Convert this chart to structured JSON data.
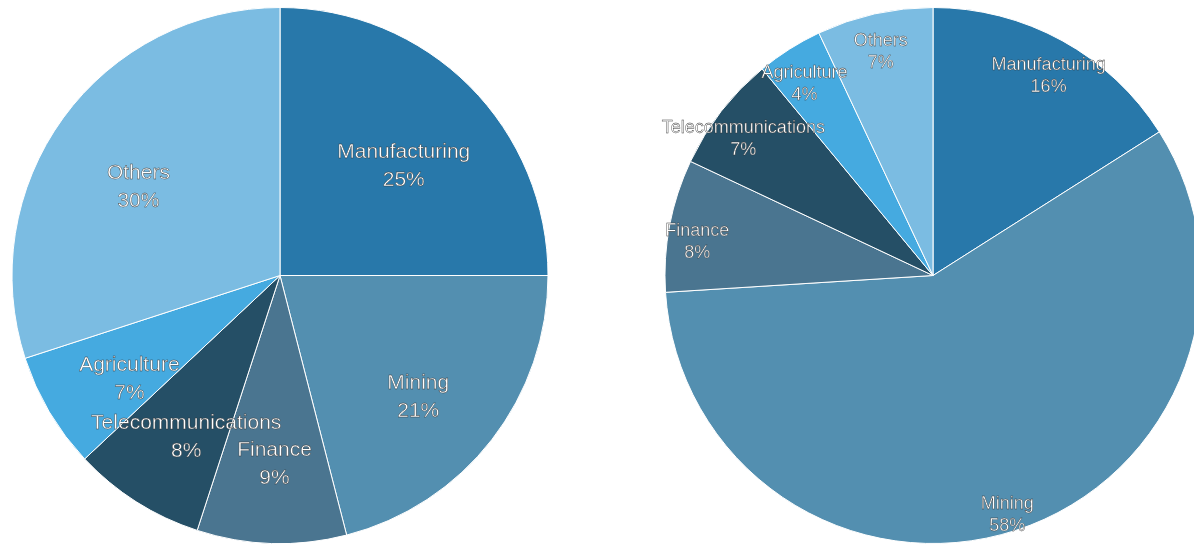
{
  "chart_data": [
    {
      "type": "pie",
      "categories": [
        "Manufacturing",
        "Mining",
        "Finance",
        "Telecommunications",
        "Agriculture",
        "Others"
      ],
      "values": [
        25,
        21,
        9,
        8,
        7,
        30
      ],
      "value_labels": [
        "25%",
        "21%",
        "9%",
        "8%",
        "7%",
        "30%"
      ],
      "colors": [
        "#2878aa",
        "#538fb0",
        "#4a7590",
        "#254f66",
        "#45aae0",
        "#7bbce2"
      ],
      "legend": false
    },
    {
      "type": "pie",
      "categories": [
        "Manufacturing",
        "Mining",
        "Finance",
        "Telecommunications",
        "Agriculture",
        "Others"
      ],
      "values": [
        16,
        58,
        8,
        7,
        4,
        7
      ],
      "value_labels": [
        "16%",
        "58%",
        "8%",
        "7%",
        "4%",
        "7%"
      ],
      "colors": [
        "#2878aa",
        "#538fb0",
        "#4a7590",
        "#254f66",
        "#45aae0",
        "#7bbce2"
      ],
      "legend": false
    }
  ]
}
